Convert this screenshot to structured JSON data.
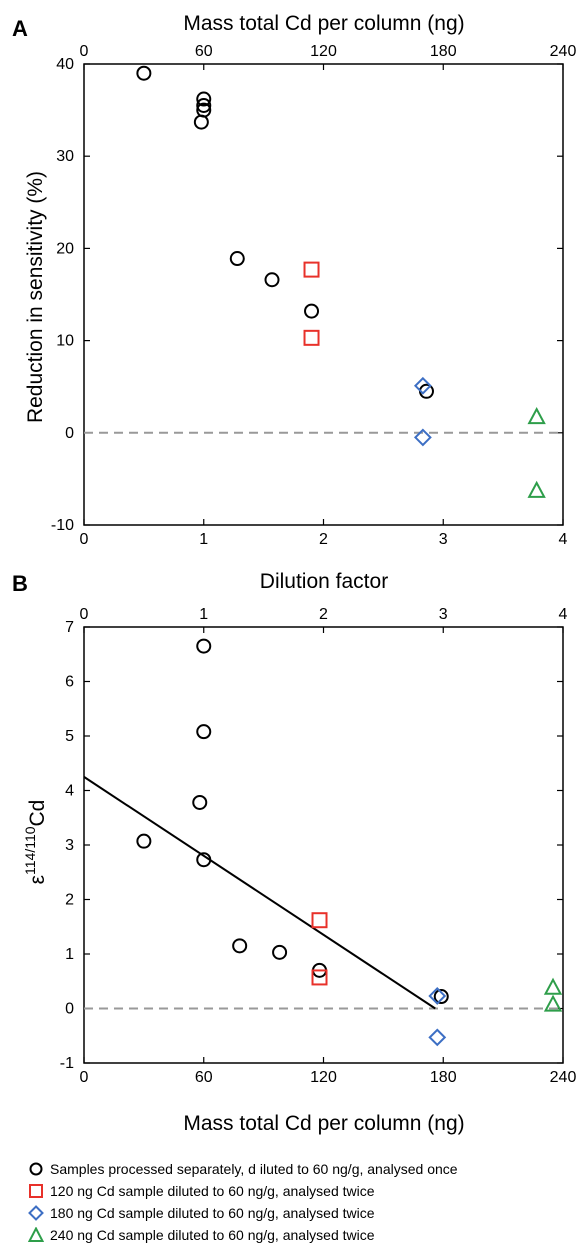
{
  "chart_data": [
    {
      "panel": "A",
      "type": "scatter",
      "xlabel": "Dilution factor",
      "ylabel": "Reduction in sensitivity (%)",
      "top_axis_label": "Mass total Cd per column (ng)",
      "xlim": [
        0,
        4
      ],
      "ylim": [
        -10,
        40
      ],
      "x_ticks": [
        "0",
        "1",
        "2",
        "3",
        "4"
      ],
      "y_ticks": [
        "-10",
        "0",
        "10",
        "20",
        "30",
        "40"
      ],
      "top_ticks": [
        "0",
        "60",
        "120",
        "180",
        "240"
      ],
      "top_range": [
        0,
        240
      ],
      "reference_line": 0,
      "series": [
        {
          "key": "circle",
          "points": [
            [
              0.5,
              39
            ],
            [
              1.0,
              36.2
            ],
            [
              1.0,
              35.5
            ],
            [
              1.0,
              35.0
            ],
            [
              0.98,
              33.7
            ],
            [
              1.28,
              18.9
            ],
            [
              1.57,
              16.6
            ],
            [
              1.9,
              13.2
            ],
            [
              2.86,
              4.5
            ]
          ]
        },
        {
          "key": "square",
          "points": [
            [
              1.9,
              17.7
            ],
            [
              1.9,
              10.3
            ]
          ]
        },
        {
          "key": "diamond",
          "points": [
            [
              2.83,
              5.1
            ],
            [
              2.83,
              -0.5
            ]
          ]
        },
        {
          "key": "triangle",
          "points": [
            [
              3.78,
              1.7
            ],
            [
              3.78,
              -6.3
            ]
          ]
        }
      ]
    },
    {
      "panel": "B",
      "type": "scatter",
      "xlabel": "Mass total Cd per column (ng)",
      "ylabel_prefix": "ε",
      "ylabel_sup": "114/110",
      "ylabel_suffix": "Cd",
      "top_axis_label": "Dilution factor",
      "xlim": [
        0,
        240
      ],
      "ylim": [
        -1,
        7
      ],
      "x_ticks": [
        "0",
        "60",
        "120",
        "180",
        "240"
      ],
      "y_ticks": [
        "-1",
        "0",
        "1",
        "2",
        "3",
        "4",
        "5",
        "6",
        "7"
      ],
      "top_ticks": [
        "0",
        "1",
        "2",
        "3",
        "4"
      ],
      "top_range": [
        0,
        4
      ],
      "reference_line": 0,
      "trend_line": [
        [
          0,
          4.25
        ],
        [
          176,
          0
        ]
      ],
      "series": [
        {
          "key": "circle",
          "points": [
            [
              30,
              3.07
            ],
            [
              60,
              6.65
            ],
            [
              60,
              5.08
            ],
            [
              58,
              3.78
            ],
            [
              60,
              2.73
            ],
            [
              78,
              1.15
            ],
            [
              98,
              1.03
            ],
            [
              118,
              0.7
            ],
            [
              179,
              0.22
            ]
          ]
        },
        {
          "key": "square",
          "points": [
            [
              118,
              1.62
            ],
            [
              118,
              0.57
            ]
          ]
        },
        {
          "key": "diamond",
          "points": [
            [
              177,
              0.23
            ],
            [
              177,
              -0.53
            ]
          ]
        },
        {
          "key": "triangle",
          "points": [
            [
              235,
              0.38
            ],
            [
              235,
              0.07
            ]
          ]
        }
      ]
    }
  ],
  "colors": {
    "circle": "#000000",
    "square": "#e8312a",
    "diamond": "#3d6fc4",
    "triangle": "#2e9e4a",
    "reference_line": "#999999",
    "trend_line": "#000000"
  },
  "legend": [
    {
      "key": "circle",
      "label": "Samples processed separately, d iluted to 60 ng/g, analysed once"
    },
    {
      "key": "square",
      "label": "120 ng Cd sample diluted to 60  ng/g, analysed twice"
    },
    {
      "key": "diamond",
      "label": "180 ng Cd sample diluted to 60  ng/g, analysed twice"
    },
    {
      "key": "triangle",
      "label": "240 ng Cd sample diluted to 60  ng/g, analysed twice"
    }
  ]
}
